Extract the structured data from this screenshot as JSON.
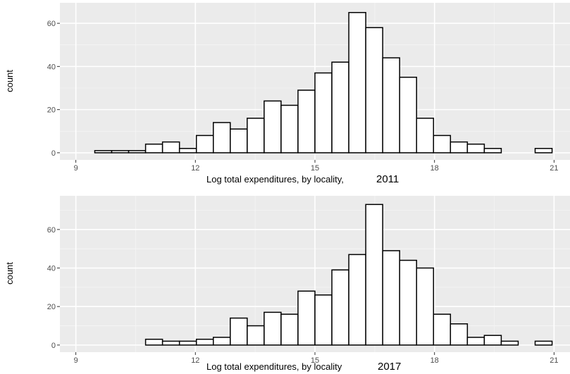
{
  "chart_data": [
    {
      "type": "bar",
      "xlabel": "Log total expenditures, by locality,",
      "xlabel_suffix": "2011",
      "ylabel": "count",
      "xlim": [
        8.6,
        21.4
      ],
      "ylim": [
        -3.3,
        69.5
      ],
      "x_ticks": [
        9,
        12,
        15,
        18,
        21
      ],
      "y_ticks": [
        0,
        20,
        40,
        60
      ],
      "grid": true,
      "bin_width": 0.425,
      "bins": [
        {
          "x0": 9.05,
          "x1": 9.475,
          "count": 0
        },
        {
          "x0": 9.475,
          "x1": 9.9,
          "count": 1
        },
        {
          "x0": 9.9,
          "x1": 10.325,
          "count": 1
        },
        {
          "x0": 10.325,
          "x1": 10.75,
          "count": 1
        },
        {
          "x0": 10.75,
          "x1": 11.175,
          "count": 4
        },
        {
          "x0": 11.175,
          "x1": 11.6,
          "count": 5
        },
        {
          "x0": 11.6,
          "x1": 12.025,
          "count": 2
        },
        {
          "x0": 12.025,
          "x1": 12.45,
          "count": 8
        },
        {
          "x0": 12.45,
          "x1": 12.875,
          "count": 14
        },
        {
          "x0": 12.875,
          "x1": 13.3,
          "count": 11
        },
        {
          "x0": 13.3,
          "x1": 13.725,
          "count": 16
        },
        {
          "x0": 13.725,
          "x1": 14.15,
          "count": 24
        },
        {
          "x0": 14.15,
          "x1": 14.575,
          "count": 22
        },
        {
          "x0": 14.575,
          "x1": 15.0,
          "count": 29
        },
        {
          "x0": 15.0,
          "x1": 15.425,
          "count": 37
        },
        {
          "x0": 15.425,
          "x1": 15.85,
          "count": 42
        },
        {
          "x0": 15.85,
          "x1": 16.275,
          "count": 65
        },
        {
          "x0": 16.275,
          "x1": 16.7,
          "count": 58
        },
        {
          "x0": 16.7,
          "x1": 17.125,
          "count": 44
        },
        {
          "x0": 17.125,
          "x1": 17.55,
          "count": 35
        },
        {
          "x0": 17.55,
          "x1": 17.975,
          "count": 16
        },
        {
          "x0": 17.975,
          "x1": 18.4,
          "count": 8
        },
        {
          "x0": 18.4,
          "x1": 18.825,
          "count": 5
        },
        {
          "x0": 18.825,
          "x1": 19.25,
          "count": 4
        },
        {
          "x0": 19.25,
          "x1": 19.675,
          "count": 2
        },
        {
          "x0": 19.675,
          "x1": 20.1,
          "count": 0
        },
        {
          "x0": 20.1,
          "x1": 20.525,
          "count": 0
        },
        {
          "x0": 20.525,
          "x1": 20.95,
          "count": 2
        }
      ]
    },
    {
      "type": "bar",
      "xlabel": "Log total expenditures, by locality",
      "xlabel_suffix": "2017",
      "ylabel": "count",
      "xlim": [
        8.6,
        21.4
      ],
      "ylim": [
        -3.7,
        77.5
      ],
      "x_ticks": [
        9,
        12,
        15,
        18,
        21
      ],
      "y_ticks": [
        0,
        20,
        40,
        60
      ],
      "grid": true,
      "bin_width": 0.425,
      "bins": [
        {
          "x0": 9.05,
          "x1": 9.475,
          "count": 0
        },
        {
          "x0": 9.475,
          "x1": 9.9,
          "count": 0
        },
        {
          "x0": 9.9,
          "x1": 10.325,
          "count": 0
        },
        {
          "x0": 10.325,
          "x1": 10.75,
          "count": 0
        },
        {
          "x0": 10.75,
          "x1": 11.175,
          "count": 3
        },
        {
          "x0": 11.175,
          "x1": 11.6,
          "count": 2
        },
        {
          "x0": 11.6,
          "x1": 12.025,
          "count": 2
        },
        {
          "x0": 12.025,
          "x1": 12.45,
          "count": 3
        },
        {
          "x0": 12.45,
          "x1": 12.875,
          "count": 4
        },
        {
          "x0": 12.875,
          "x1": 13.3,
          "count": 14
        },
        {
          "x0": 13.3,
          "x1": 13.725,
          "count": 10
        },
        {
          "x0": 13.725,
          "x1": 14.15,
          "count": 17
        },
        {
          "x0": 14.15,
          "x1": 14.575,
          "count": 16
        },
        {
          "x0": 14.575,
          "x1": 15.0,
          "count": 28
        },
        {
          "x0": 15.0,
          "x1": 15.425,
          "count": 26
        },
        {
          "x0": 15.425,
          "x1": 15.85,
          "count": 39
        },
        {
          "x0": 15.85,
          "x1": 16.275,
          "count": 47
        },
        {
          "x0": 16.275,
          "x1": 16.7,
          "count": 73
        },
        {
          "x0": 16.7,
          "x1": 17.125,
          "count": 49
        },
        {
          "x0": 17.125,
          "x1": 17.55,
          "count": 44
        },
        {
          "x0": 17.55,
          "x1": 17.975,
          "count": 40
        },
        {
          "x0": 17.975,
          "x1": 18.4,
          "count": 16
        },
        {
          "x0": 18.4,
          "x1": 18.825,
          "count": 11
        },
        {
          "x0": 18.825,
          "x1": 19.25,
          "count": 4
        },
        {
          "x0": 19.25,
          "x1": 19.675,
          "count": 5
        },
        {
          "x0": 19.675,
          "x1": 20.1,
          "count": 2
        },
        {
          "x0": 20.1,
          "x1": 20.525,
          "count": 0
        },
        {
          "x0": 20.525,
          "x1": 20.95,
          "count": 2
        }
      ]
    }
  ],
  "colors": {
    "panel_background": "#ebebeb",
    "grid_major": "#ffffff",
    "grid_minor": "#f5f5f5",
    "bar_fill": "#ffffff",
    "bar_outline": "#000000",
    "tick_text": "#4d4d4d",
    "tick_mark": "#333333"
  }
}
